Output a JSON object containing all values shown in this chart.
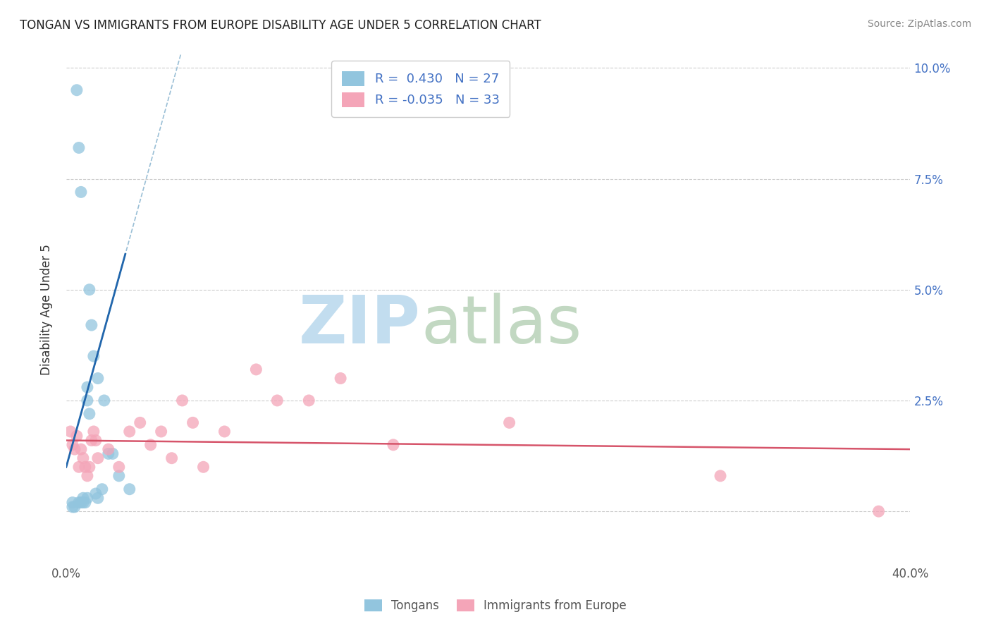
{
  "title": "TONGAN VS IMMIGRANTS FROM EUROPE DISABILITY AGE UNDER 5 CORRELATION CHART",
  "source": "Source: ZipAtlas.com",
  "ylabel": "Disability Age Under 5",
  "xlim": [
    0.0,
    0.4
  ],
  "ylim": [
    -0.012,
    0.103
  ],
  "x_tick_positions": [
    0.0,
    0.1,
    0.2,
    0.3,
    0.4
  ],
  "x_tick_labels": [
    "0.0%",
    "",
    "",
    "",
    "40.0%"
  ],
  "y_tick_positions": [
    0.0,
    0.025,
    0.05,
    0.075,
    0.1
  ],
  "y_tick_labels_right": [
    "",
    "2.5%",
    "5.0%",
    "7.5%",
    "10.0%"
  ],
  "R_tongan": 0.43,
  "N_tongan": 27,
  "R_europe": -0.035,
  "N_europe": 33,
  "tongan_color": "#92C5DE",
  "europe_color": "#F4A5B8",
  "tongan_line_color": "#2166AC",
  "europe_line_color": "#D6546A",
  "dash_color": "#9ABFD6",
  "legend_labels": [
    "Tongans",
    "Immigrants from Europe"
  ],
  "tongan_x": [
    0.003,
    0.003,
    0.004,
    0.005,
    0.006,
    0.006,
    0.007,
    0.007,
    0.008,
    0.008,
    0.009,
    0.01,
    0.01,
    0.01,
    0.011,
    0.011,
    0.012,
    0.013,
    0.014,
    0.015,
    0.015,
    0.017,
    0.018,
    0.02,
    0.022,
    0.025,
    0.03
  ],
  "tongan_y": [
    0.001,
    0.002,
    0.001,
    0.095,
    0.082,
    0.002,
    0.072,
    0.002,
    0.002,
    0.003,
    0.002,
    0.003,
    0.025,
    0.028,
    0.022,
    0.05,
    0.042,
    0.035,
    0.004,
    0.03,
    0.003,
    0.005,
    0.025,
    0.013,
    0.013,
    0.008,
    0.005
  ],
  "europe_x": [
    0.002,
    0.003,
    0.004,
    0.005,
    0.006,
    0.007,
    0.008,
    0.009,
    0.01,
    0.011,
    0.012,
    0.013,
    0.014,
    0.015,
    0.02,
    0.025,
    0.03,
    0.035,
    0.04,
    0.045,
    0.05,
    0.055,
    0.06,
    0.065,
    0.075,
    0.09,
    0.1,
    0.115,
    0.13,
    0.155,
    0.21,
    0.31,
    0.385
  ],
  "europe_y": [
    0.018,
    0.015,
    0.014,
    0.017,
    0.01,
    0.014,
    0.012,
    0.01,
    0.008,
    0.01,
    0.016,
    0.018,
    0.016,
    0.012,
    0.014,
    0.01,
    0.018,
    0.02,
    0.015,
    0.018,
    0.012,
    0.025,
    0.02,
    0.01,
    0.018,
    0.032,
    0.025,
    0.025,
    0.03,
    0.015,
    0.02,
    0.008,
    0.0
  ],
  "blue_line_x": [
    0.0,
    0.028
  ],
  "blue_line_y_start": 0.01,
  "blue_line_slope": 1.8,
  "dash_line_x": [
    0.0,
    0.32
  ],
  "europe_line_x": [
    0.0,
    0.4
  ],
  "europe_line_y": [
    0.016,
    0.014
  ]
}
